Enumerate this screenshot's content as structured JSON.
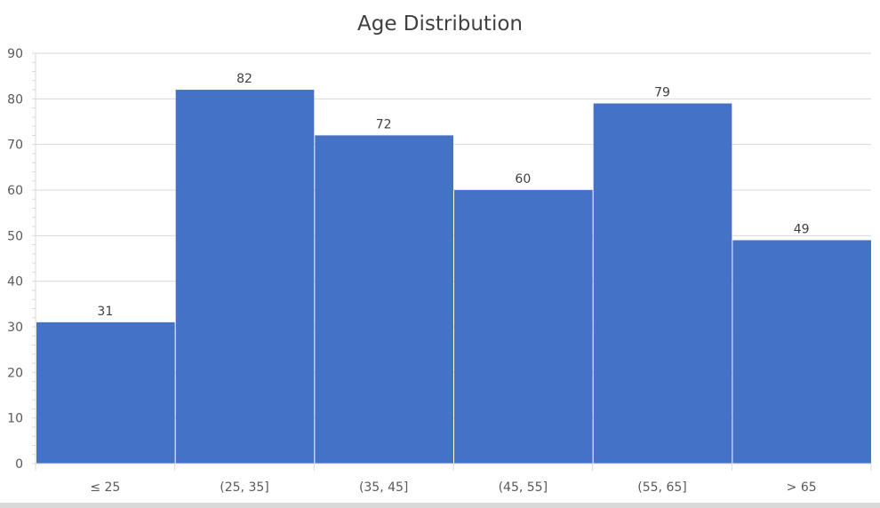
{
  "chart_data": {
    "type": "bar",
    "title": "Age Distribution",
    "categories": [
      "≤ 25",
      "(25, 35]",
      "(35, 45]",
      "(45, 55]",
      "(55, 65]",
      "> 65"
    ],
    "values": [
      31,
      82,
      72,
      60,
      79,
      49
    ],
    "xlabel": "",
    "ylabel": "",
    "ylim": [
      0,
      90
    ],
    "yticks": [
      0,
      10,
      20,
      30,
      40,
      50,
      60,
      70,
      80,
      90
    ],
    "grid": true,
    "legend": "none",
    "bar_color": "#4472C4",
    "data_labels": true
  }
}
